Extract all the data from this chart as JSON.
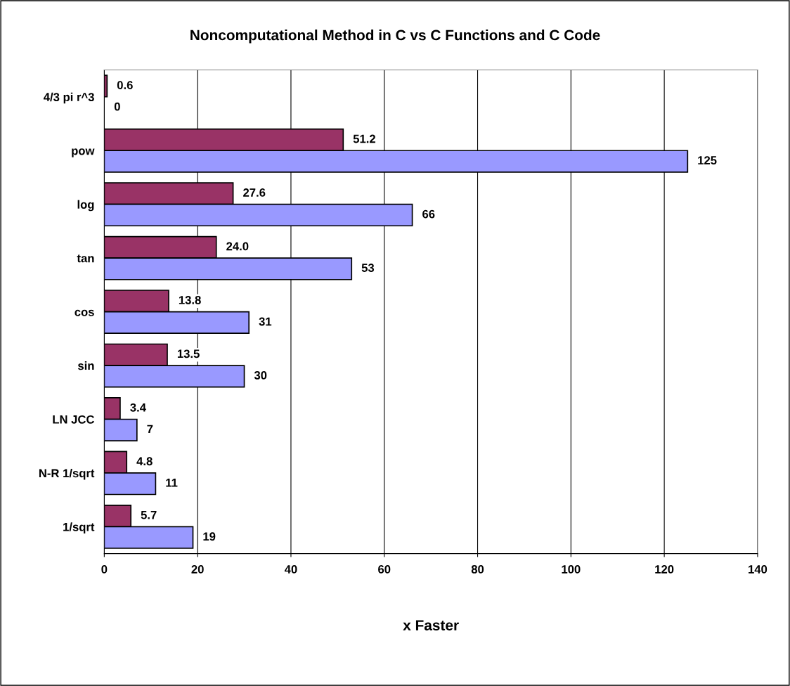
{
  "chart_data": {
    "type": "bar",
    "orientation": "horizontal",
    "title": "Noncomputational Method in C vs C Functions and C Code",
    "xlabel": "x Faster",
    "categories": [
      "4/3 pi r^3",
      "pow",
      "log",
      "tan",
      "cos",
      "sin",
      "LN JCC",
      "N-R 1/sqrt",
      "1/sqrt"
    ],
    "series": [
      {
        "color": "#993366",
        "values": [
          0.6,
          51.2,
          27.6,
          24.0,
          13.8,
          13.5,
          3.4,
          4.8,
          5.7
        ],
        "value_labels": [
          "0.6",
          "51.2",
          "27.6",
          "24.0",
          "13.8",
          "13.5",
          "3.4",
          "4.8",
          "5.7"
        ]
      },
      {
        "color": "#9999ff",
        "values": [
          0,
          125,
          66,
          53,
          31,
          30,
          7,
          11,
          19
        ],
        "value_labels": [
          "0",
          "125",
          "66",
          "53",
          "31",
          "30",
          "7",
          "11",
          "19"
        ]
      }
    ],
    "xlim": [
      0,
      140
    ],
    "xticks": [
      0,
      20,
      40,
      60,
      80,
      100,
      120,
      140
    ],
    "grid": "x"
  }
}
